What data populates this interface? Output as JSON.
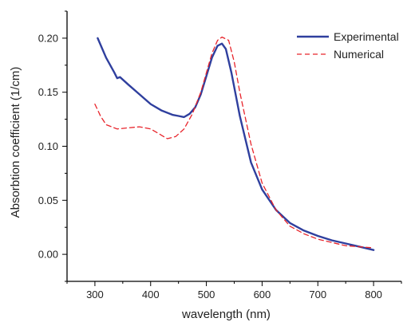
{
  "chart_data": {
    "type": "line",
    "xlabel": "wavelength (nm)",
    "ylabel": "Absorbtion coefficient (1/cm)",
    "xlim": [
      250,
      850
    ],
    "ylim": [
      -0.025,
      0.225
    ],
    "xticks": [
      300,
      400,
      500,
      600,
      700,
      800
    ],
    "yticks": [
      0.0,
      0.05,
      0.1,
      0.15,
      0.2
    ],
    "ytick_labels": [
      "0.00",
      "0.05",
      "0.10",
      "0.15",
      "0.20"
    ],
    "grid": false,
    "legend_position": "top-right",
    "series": [
      {
        "name": "Experimental",
        "color": "#2f3f9e",
        "style": "solid",
        "x": [
          305,
          320,
          335,
          340,
          345,
          360,
          380,
          400,
          420,
          440,
          450,
          460,
          470,
          480,
          490,
          500,
          510,
          520,
          528,
          535,
          545,
          560,
          580,
          600,
          625,
          650,
          675,
          700,
          725,
          750,
          775,
          800
        ],
        "y": [
          0.2,
          0.182,
          0.168,
          0.163,
          0.164,
          0.157,
          0.148,
          0.139,
          0.133,
          0.129,
          0.128,
          0.127,
          0.13,
          0.136,
          0.148,
          0.165,
          0.182,
          0.193,
          0.195,
          0.19,
          0.168,
          0.128,
          0.085,
          0.06,
          0.041,
          0.029,
          0.022,
          0.017,
          0.013,
          0.01,
          0.007,
          0.004
        ]
      },
      {
        "name": "Numerical",
        "color": "#e8242b",
        "style": "dashed",
        "x": [
          300,
          310,
          320,
          340,
          360,
          380,
          400,
          420,
          430,
          445,
          460,
          475,
          490,
          500,
          510,
          520,
          528,
          540,
          550,
          560,
          580,
          600,
          625,
          650,
          675,
          700,
          725,
          750,
          775,
          800
        ],
        "y": [
          0.139,
          0.128,
          0.12,
          0.116,
          0.117,
          0.118,
          0.116,
          0.11,
          0.107,
          0.109,
          0.116,
          0.13,
          0.15,
          0.168,
          0.186,
          0.198,
          0.201,
          0.198,
          0.178,
          0.15,
          0.102,
          0.066,
          0.041,
          0.026,
          0.019,
          0.014,
          0.011,
          0.008,
          0.007,
          0.006
        ]
      }
    ]
  }
}
